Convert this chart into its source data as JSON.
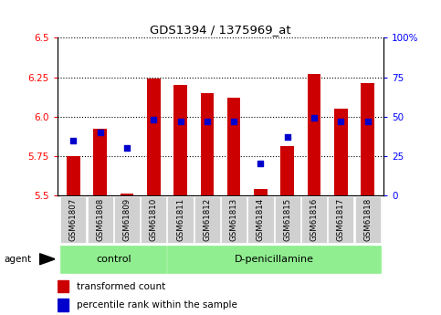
{
  "title": "GDS1394 / 1375969_at",
  "samples": [
    "GSM61807",
    "GSM61808",
    "GSM61809",
    "GSM61810",
    "GSM61811",
    "GSM61812",
    "GSM61813",
    "GSM61814",
    "GSM61815",
    "GSM61816",
    "GSM61817",
    "GSM61818"
  ],
  "transformed_count": [
    5.75,
    5.92,
    5.51,
    6.24,
    6.2,
    6.15,
    6.12,
    5.54,
    5.81,
    6.27,
    6.05,
    6.21
  ],
  "percentile_rank": [
    35,
    40,
    30,
    48,
    47,
    47,
    47,
    20,
    37,
    49,
    47,
    47
  ],
  "ylim_left": [
    5.5,
    6.5
  ],
  "ylim_right": [
    0,
    100
  ],
  "yticks_left": [
    5.5,
    5.75,
    6.0,
    6.25,
    6.5
  ],
  "yticks_right": [
    0,
    25,
    50,
    75,
    100
  ],
  "ytick_labels_right": [
    "0",
    "25",
    "50",
    "75",
    "100%"
  ],
  "bar_color": "#CC0000",
  "square_color": "#0000CC",
  "bar_bottom": 5.5,
  "n_control": 4,
  "n_treatment": 8,
  "control_label": "control",
  "treatment_label": "D-penicillamine",
  "agent_label": "agent",
  "legend_bar_label": "transformed count",
  "legend_square_label": "percentile rank within the sample",
  "plot_bg": "#ffffff",
  "bar_width": 0.5,
  "square_size": 20,
  "gray_box": "#d0d0d0",
  "green_box": "#90ee90"
}
